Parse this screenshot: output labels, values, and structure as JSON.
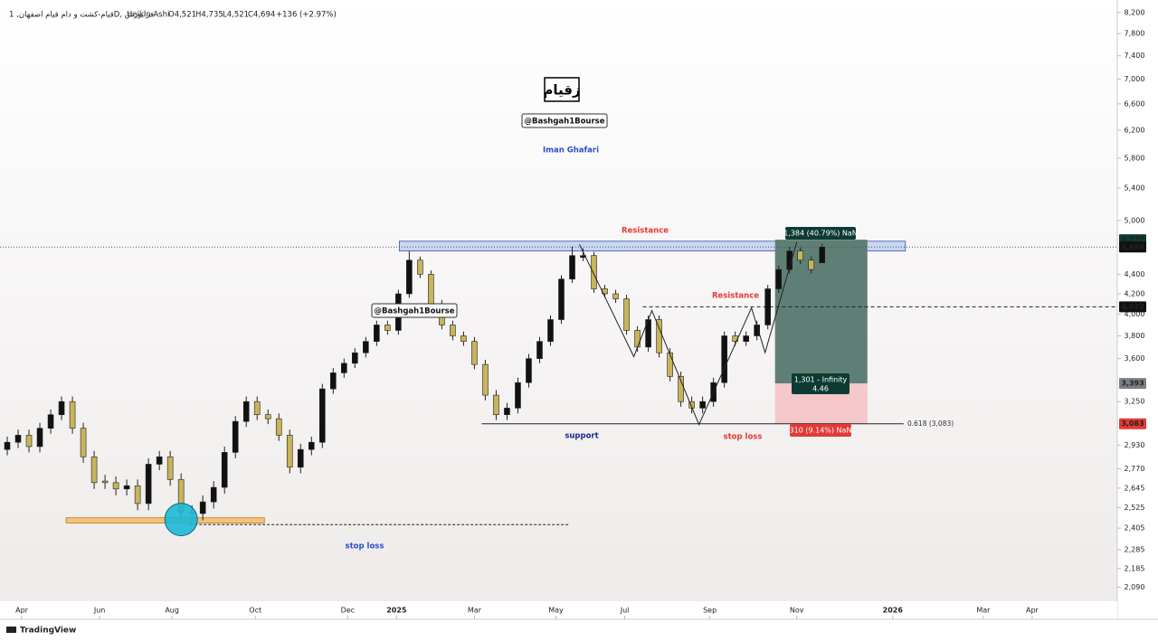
{
  "chart_data": {
    "type": "candlestick",
    "symbol": "قیام-کشت و دام قیام اصفهان, 1D, فرابورس",
    "style": "Heikin Ashi",
    "ohlc_labels": [
      "O4,521",
      "H4,735",
      "L4,521",
      "C4,694"
    ],
    "change": "+136 (+2.97%)",
    "x": [
      4,
      10,
      16,
      22,
      28,
      34,
      40,
      46,
      52,
      58,
      64,
      70,
      76,
      82,
      88,
      94,
      100,
      106,
      112,
      118,
      124,
      130,
      136,
      142,
      148,
      154,
      160,
      166,
      172,
      178,
      184,
      190,
      196,
      202,
      208,
      214,
      220,
      226,
      232,
      238,
      244,
      250,
      256,
      262,
      268,
      274,
      280,
      286,
      292,
      298,
      304,
      310,
      316,
      322,
      328,
      334,
      340,
      346,
      352,
      358,
      364,
      370,
      376,
      382,
      388,
      394,
      400,
      406,
      412,
      418,
      424,
      430,
      436,
      442,
      448,
      454
    ],
    "open": [
      2900,
      2950,
      3000,
      2920,
      3050,
      3150,
      3250,
      3050,
      2850,
      2690,
      2680,
      2640,
      2660,
      2550,
      2800,
      2850,
      2700,
      2500,
      2490,
      2560,
      2650,
      2880,
      3100,
      3250,
      3150,
      3120,
      3000,
      2780,
      2900,
      2950,
      3350,
      3480,
      3560,
      3650,
      3750,
      3900,
      3850,
      4200,
      4550,
      4400,
      4100,
      3900,
      3800,
      3750,
      3550,
      3300,
      3150,
      3200,
      3400,
      3600,
      3750,
      3950,
      4350,
      4580,
      4600,
      4250,
      4200,
      4150,
      3850,
      3700,
      3950,
      3650,
      3450,
      3250,
      3200,
      3250,
      3400,
      3800,
      3750,
      3800,
      3900,
      4250,
      4450,
      4650,
      4550,
      4521
    ],
    "high": [
      2990,
      3040,
      3040,
      3090,
      3190,
      3290,
      3290,
      3090,
      2890,
      2730,
      2720,
      2700,
      2700,
      2840,
      2890,
      2890,
      2740,
      2540,
      2600,
      2690,
      2920,
      3140,
      3290,
      3290,
      3190,
      3160,
      3040,
      2940,
      2990,
      3390,
      3520,
      3600,
      3690,
      3790,
      3940,
      3940,
      4240,
      4650,
      4590,
      4440,
      4140,
      3940,
      3840,
      3790,
      3590,
      3340,
      3240,
      3440,
      3640,
      3790,
      3990,
      4390,
      4700,
      4680,
      4640,
      4290,
      4240,
      4190,
      3890,
      3990,
      3990,
      3690,
      3490,
      3290,
      3290,
      3440,
      3840,
      3840,
      3840,
      3940,
      4290,
      4490,
      4700,
      4690,
      4590,
      4735
    ],
    "low": [
      2860,
      2910,
      2880,
      2880,
      3010,
      3110,
      3010,
      2810,
      2640,
      2640,
      2600,
      2600,
      2510,
      2510,
      2760,
      2660,
      2460,
      2450,
      2450,
      2520,
      2610,
      2840,
      3060,
      3110,
      3080,
      2960,
      2740,
      2740,
      2860,
      2910,
      3310,
      3440,
      3520,
      3610,
      3710,
      3810,
      3810,
      4160,
      4360,
      4060,
      3860,
      3760,
      3710,
      3510,
      3260,
      3110,
      3110,
      3160,
      3360,
      3560,
      3710,
      3910,
      4310,
      4540,
      4210,
      4160,
      4110,
      3810,
      3660,
      3660,
      3610,
      3410,
      3210,
      3160,
      3160,
      3210,
      3360,
      3710,
      3710,
      3760,
      3860,
      4210,
      4410,
      4510,
      4410,
      4521
    ],
    "close": [
      2950,
      3000,
      2920,
      3050,
      3150,
      3250,
      3050,
      2850,
      2680,
      2680,
      2640,
      2660,
      2550,
      2800,
      2850,
      2700,
      2500,
      2490,
      2560,
      2650,
      2880,
      3100,
      3250,
      3150,
      3120,
      3000,
      2780,
      2900,
      2950,
      3350,
      3480,
      3560,
      3650,
      3750,
      3900,
      3850,
      4200,
      4550,
      4400,
      4100,
      3900,
      3800,
      3750,
      3550,
      3300,
      3150,
      3200,
      3400,
      3600,
      3750,
      3950,
      4350,
      4600,
      4600,
      4250,
      4200,
      4150,
      3850,
      3700,
      3950,
      3650,
      3450,
      3250,
      3200,
      3250,
      3400,
      3800,
      3750,
      3800,
      3900,
      4250,
      4450,
      4650,
      4550,
      4450,
      4694
    ],
    "up_color": "#111111",
    "down_color": "#c8b45a",
    "log_scale": true,
    "xlim": [
      0,
      617
    ],
    "xticks": [
      {
        "value": 12,
        "label": "Apr"
      },
      {
        "value": 55,
        "label": "Jun"
      },
      {
        "value": 95,
        "label": "Aug"
      },
      {
        "value": 141,
        "label": "Oct"
      },
      {
        "value": 192,
        "label": "Dec"
      },
      {
        "value": 219,
        "label": "2025"
      },
      {
        "value": 262,
        "label": "Mar"
      },
      {
        "value": 307,
        "label": "May"
      },
      {
        "value": 345,
        "label": "Jul"
      },
      {
        "value": 392,
        "label": "Sep"
      },
      {
        "value": 440,
        "label": "Nov"
      },
      {
        "value": 493,
        "label": "2026"
      },
      {
        "value": 543,
        "label": "Mar"
      },
      {
        "value": 570,
        "label": "Apr"
      }
    ],
    "ylim": [
      1936,
      8450
    ],
    "yticks": [
      {
        "value": 8200,
        "label": "8,200"
      },
      {
        "value": 7800,
        "label": "7,800"
      },
      {
        "value": 7400,
        "label": "7,400"
      },
      {
        "value": 7000,
        "label": "7,000"
      },
      {
        "value": 6600,
        "label": "6,600"
      },
      {
        "value": 6200,
        "label": "6,200"
      },
      {
        "value": 5800,
        "label": "5,800"
      },
      {
        "value": 5400,
        "label": "5,400"
      },
      {
        "value": 5000,
        "label": "5,000"
      },
      {
        "value": 4400,
        "label": "4,400"
      },
      {
        "value": 4200,
        "label": "4,200"
      },
      {
        "value": 4000,
        "label": "4,000"
      },
      {
        "value": 3800,
        "label": "3,800"
      },
      {
        "value": 3600,
        "label": "3,600"
      },
      {
        "value": 3250,
        "label": "3,250"
      },
      {
        "value": 2930,
        "label": "2,930"
      },
      {
        "value": 2770,
        "label": "2,770"
      },
      {
        "value": 2645,
        "label": "2,645"
      },
      {
        "value": 2525,
        "label": "2,525"
      },
      {
        "value": 2405,
        "label": "2,405"
      },
      {
        "value": 2285,
        "label": "2,285"
      },
      {
        "value": 2185,
        "label": "2,185"
      },
      {
        "value": 2090,
        "label": "2,090"
      }
    ],
    "price_labels": [
      {
        "value": 4777,
        "label": "4,777",
        "color": "#0d3b34"
      },
      {
        "value": 4694,
        "label": "4,694",
        "color": "#111111"
      },
      {
        "value": 4072,
        "label": "4,072",
        "color": "#111111"
      },
      {
        "value": 3393,
        "label": "3,393",
        "color": "#7b8087"
      },
      {
        "value": 3083,
        "label": "3,083",
        "color": "#e53935"
      }
    ],
    "last_price": 4694,
    "resistance_zone": {
      "x": [
        220.5,
        500
      ],
      "y": [
        4650,
        4760
      ]
    },
    "support_zone": {
      "x": [
        36.5,
        146
      ],
      "y": [
        2435,
        2465
      ]
    },
    "stop_line": {
      "x": [
        105,
        314
      ],
      "value": 2425
    },
    "support_line": {
      "x": [
        266,
        499
      ],
      "value": 3083
    },
    "level_line": {
      "x": [
        355,
        617
      ],
      "value": 4072
    },
    "position": {
      "x": [
        428,
        479
      ],
      "target": 4777,
      "entry": 3393,
      "stop": 3083
    },
    "trendline": {
      "x": [
        320,
        350,
        360,
        386,
        415,
        422.5,
        440
      ],
      "y": [
        4724,
        3617,
        4035,
        3077,
        4062,
        3652,
        4750
      ]
    },
    "highlight": {
      "x": 100,
      "y": 2455
    }
  },
  "annotations": {
    "logo": "زقیام",
    "handle": "@Bashgah1Bourse",
    "author": "Iman Ghafari",
    "handle_2": "@Bashgah1Bourse",
    "resistance_1": "Resistance",
    "resistance_2": "Resistance",
    "support": "support",
    "stop_loss_1": "stop loss",
    "stop_loss_2": "stop loss",
    "target_label": "1,384 (40.79%) NaN",
    "ratio_label_1": "1,301 - Infinity",
    "ratio_label_2": "4.46",
    "stop_label": "310 (9.14%) NaN",
    "fib_label": "0.618 (3,083)"
  },
  "footer": {
    "brand": "TradingView"
  }
}
